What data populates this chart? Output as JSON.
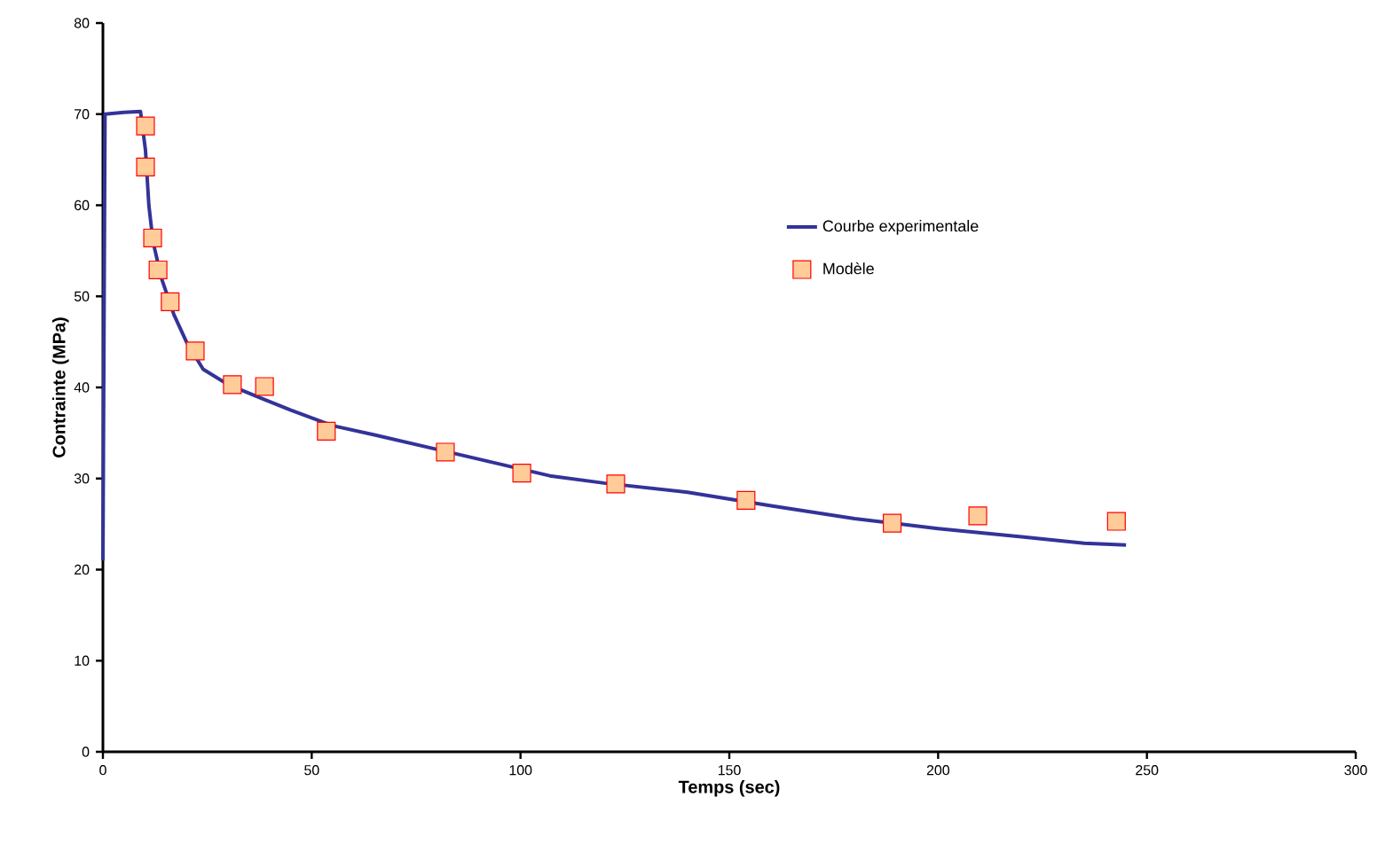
{
  "chart_data": {
    "type": "line",
    "xlabel": "Temps (sec)",
    "ylabel": "Contrainte (MPa)",
    "xlim": [
      0,
      300
    ],
    "ylim": [
      0,
      80
    ],
    "xticks": [
      0,
      50,
      100,
      150,
      200,
      250,
      300
    ],
    "yticks": [
      0,
      10,
      20,
      30,
      40,
      50,
      60,
      70,
      80
    ],
    "grid": false,
    "legend": "right",
    "series": [
      {
        "name": "Courbe experimentale",
        "color": "#333399",
        "marker": "none",
        "line_style": "solid",
        "x": [
          0,
          0.5,
          5,
          9,
          10.2,
          11,
          12,
          14,
          17,
          20,
          24,
          30,
          38,
          45,
          55,
          65,
          80,
          107,
          120,
          140,
          160,
          180,
          200,
          220,
          235,
          245
        ],
        "values": [
          21,
          70,
          70.2,
          70.3,
          66,
          60,
          56,
          52,
          48,
          45,
          42,
          40.3,
          38.8,
          37.5,
          35.8,
          34.8,
          33.2,
          30.3,
          29.5,
          28.5,
          27,
          25.6,
          24.5,
          23.6,
          22.9,
          22.7
        ]
      },
      {
        "name": "Modèle",
        "type": "scatter",
        "color": "#ffcc99",
        "marker": "square",
        "x": [
          10.2,
          10.2,
          11.9,
          13.2,
          16.1,
          22.1,
          31,
          38.7,
          53.5,
          82,
          100.3,
          122.8,
          154,
          189,
          209.5,
          242.7
        ],
        "values": [
          68.7,
          64.2,
          56.4,
          52.9,
          49.4,
          44,
          40.3,
          40.1,
          35.2,
          32.9,
          30.6,
          29.4,
          27.6,
          25.1,
          25.9,
          25.3
        ]
      }
    ]
  }
}
